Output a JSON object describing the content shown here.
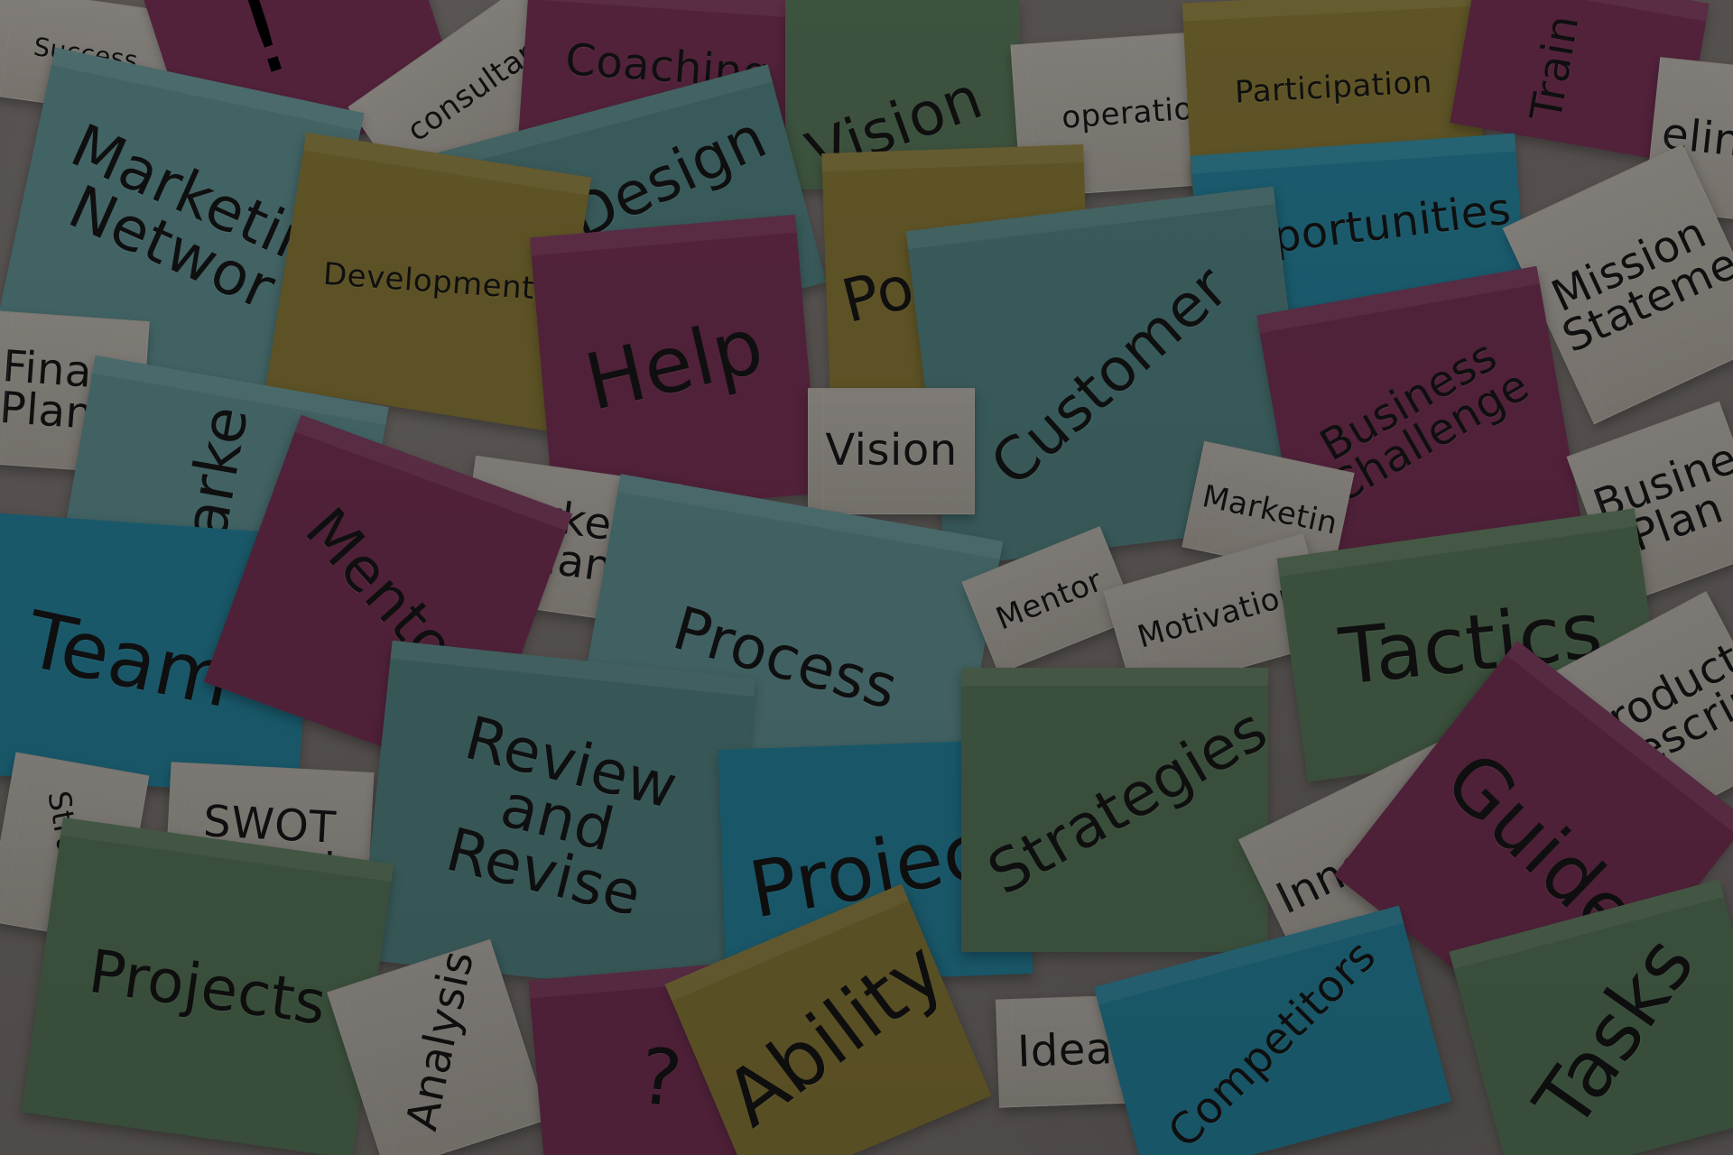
{
  "words": {
    "success": "Success",
    "consultant": "consultan",
    "coaching": "Coaching",
    "vision_top": "Vision",
    "operation": "operation",
    "participation": "Participation",
    "training": "Train",
    "guideline": "eline",
    "marketing_network": "Marketin\nNetwor",
    "design": "Design",
    "development": "Development",
    "potential": "Potential",
    "opportunities": "Opportunities",
    "mission_statement": "Mission\nStatement",
    "financial_planning": "Financ\nPlanning",
    "help": "Help",
    "customer": "Customer",
    "business_challenge": "Business\nChallenge",
    "market_side": "Marke",
    "vision_small": "Vision",
    "marketing_plan": "Marketin\nPlan",
    "marketing_right": "Marketin",
    "business_plan": "Business\nPlan",
    "mentor_big": "Mentor",
    "team": "Team",
    "process": "Process",
    "mentor_small": "Mentor",
    "motivation": "Motivation",
    "tactics": "Tactics",
    "product_description": "Product\nDescriptio",
    "strategy": "Strategy",
    "swot_analysis": "SWOT\nAnalysis",
    "review_and_revise": "Review\nand\nRevise",
    "project": "Projec",
    "strategies": "Strategies",
    "innovation": "Innovation",
    "guide": "Guide",
    "projects": "Projects",
    "analysis": "Analysis",
    "question_mark": "?",
    "ability": "Ability",
    "idea": "Idea",
    "competitors": "Competitors",
    "tasks": "Tasks",
    "exclamation": "!"
  },
  "colors": {
    "background": "#5e5957",
    "paper": "#8f8b86",
    "teal": "#4a6f70",
    "sea": "#406565",
    "pink": "#5b2641",
    "olive": "#695d2a",
    "green": "#435c45",
    "blue": "#1d6579",
    "ink": "#111111"
  }
}
